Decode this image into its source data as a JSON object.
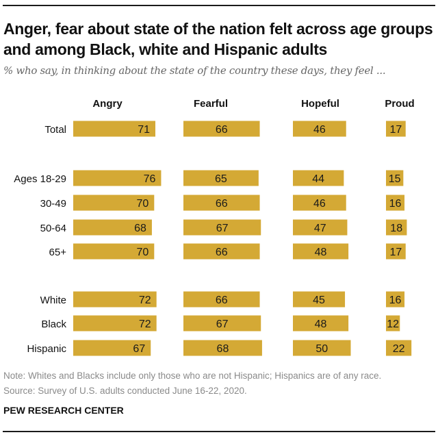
{
  "title": "Anger, fear about state of the nation felt across age groups and among Black, white and Hispanic adults",
  "subtitle": "% who say, in thinking about the state of the country these days, they feel ...",
  "note": "Note: Whites and Blacks include only those who are not Hispanic; Hispanics are of any race.",
  "source": "Source: Survey of U.S. adults conducted June 16-22, 2020.",
  "brand": "PEW RESEARCH CENTER",
  "colors": {
    "bar": "#D4A935",
    "text": "#111111"
  },
  "chart_data": {
    "type": "bar",
    "orientation": "horizontal",
    "title": "Anger, fear about state of the nation felt across age groups and among Black, white and Hispanic adults",
    "xlabel": "",
    "ylabel": "",
    "categories": [
      "Total",
      "Ages 18-29",
      "30-49",
      "50-64",
      "65+",
      "White",
      "Black",
      "Hispanic"
    ],
    "groups": [
      [
        "Total"
      ],
      [
        "Ages 18-29",
        "30-49",
        "50-64",
        "65+"
      ],
      [
        "White",
        "Black",
        "Hispanic"
      ]
    ],
    "series": [
      {
        "name": "Angry",
        "values": [
          71,
          76,
          70,
          68,
          70,
          72,
          72,
          67
        ]
      },
      {
        "name": "Fearful",
        "values": [
          66,
          65,
          66,
          67,
          66,
          66,
          67,
          68
        ]
      },
      {
        "name": "Hopeful",
        "values": [
          46,
          44,
          46,
          47,
          48,
          45,
          48,
          50
        ]
      },
      {
        "name": "Proud",
        "values": [
          17,
          15,
          16,
          18,
          17,
          16,
          12,
          22
        ]
      }
    ],
    "xlim": [
      0,
      100
    ],
    "grid": false,
    "legend": "column headers"
  }
}
